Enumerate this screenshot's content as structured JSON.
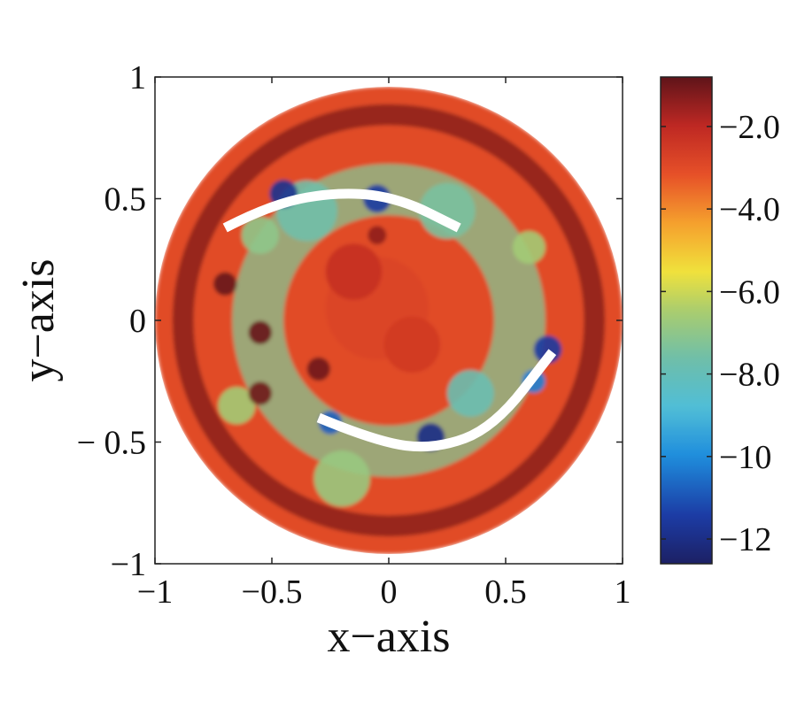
{
  "chart_data": {
    "type": "heatmap",
    "xlabel": "x−axis",
    "ylabel": "y−axis",
    "xlim": [
      -1,
      1
    ],
    "ylim": [
      -1,
      1
    ],
    "x_ticks": [
      -1,
      -0.5,
      0,
      0.5,
      1
    ],
    "x_tick_labels": [
      "−1",
      "−0.5",
      "0",
      "0.5",
      "1"
    ],
    "y_ticks": [
      -1,
      -0.5,
      0,
      0.5,
      1
    ],
    "y_tick_labels": [
      "−1",
      "− 0.5",
      "0",
      "0.5",
      "1"
    ],
    "domain": "unit disk",
    "colormap": "jet",
    "colorbar": {
      "range": [
        -12.6,
        -0.8
      ],
      "ticks": [
        -2,
        -4,
        -6,
        -8,
        -10,
        -12
      ],
      "tick_labels": [
        "−2.0",
        "−4.0",
        "−6.0",
        "−8.0",
        "−10",
        "−12"
      ]
    },
    "background_level": -3.0,
    "features": [
      {
        "type": "ring",
        "radius": 0.88,
        "width": 0.09,
        "value": -1.2
      },
      {
        "type": "ring",
        "radius": 0.56,
        "width": 0.22,
        "value": -7.2
      },
      {
        "type": "blob",
        "x": -0.05,
        "y": 0.05,
        "r": 0.22,
        "value": -2.8
      },
      {
        "type": "blob",
        "x": -0.15,
        "y": 0.2,
        "r": 0.12,
        "value": -2.2
      },
      {
        "type": "blob",
        "x": 0.1,
        "y": -0.1,
        "r": 0.12,
        "value": -2.5
      },
      {
        "type": "blob",
        "x": -0.35,
        "y": 0.45,
        "r": 0.13,
        "value": -7.6
      },
      {
        "type": "blob",
        "x": 0.25,
        "y": 0.45,
        "r": 0.12,
        "value": -7.4
      },
      {
        "type": "blob",
        "x": 0.35,
        "y": -0.3,
        "r": 0.1,
        "value": -7.8
      },
      {
        "type": "blob",
        "x": -0.2,
        "y": -0.65,
        "r": 0.12,
        "value": -6.8
      },
      {
        "type": "blob",
        "x": -0.55,
        "y": 0.35,
        "r": 0.08,
        "value": -7.0
      },
      {
        "type": "blob",
        "x": -0.65,
        "y": -0.35,
        "r": 0.08,
        "value": -6.6
      },
      {
        "type": "blob",
        "x": 0.6,
        "y": 0.3,
        "r": 0.07,
        "value": -6.6
      },
      {
        "type": "blob",
        "x": -0.55,
        "y": -0.05,
        "r": 0.05,
        "value": -0.9
      },
      {
        "type": "blob",
        "x": -0.7,
        "y": 0.15,
        "r": 0.05,
        "value": -0.9
      },
      {
        "type": "blob",
        "x": -0.55,
        "y": -0.3,
        "r": 0.05,
        "value": -1.0
      },
      {
        "type": "blob",
        "x": -0.3,
        "y": -0.2,
        "r": 0.05,
        "value": -1.0
      },
      {
        "type": "blob",
        "x": -0.05,
        "y": 0.35,
        "r": 0.04,
        "value": -1.4
      },
      {
        "type": "blob",
        "x": -0.45,
        "y": 0.52,
        "r": 0.06,
        "value": -11.8
      },
      {
        "type": "blob",
        "x": -0.05,
        "y": 0.5,
        "r": 0.06,
        "value": -11.5
      },
      {
        "type": "blob",
        "x": 0.18,
        "y": -0.48,
        "r": 0.06,
        "value": -12.0
      },
      {
        "type": "blob",
        "x": -0.25,
        "y": -0.42,
        "r": 0.05,
        "value": -10.8
      },
      {
        "type": "blob",
        "x": 0.68,
        "y": -0.12,
        "r": 0.06,
        "value": -11.5
      },
      {
        "type": "blob",
        "x": 0.62,
        "y": -0.25,
        "r": 0.05,
        "value": -10.2
      }
    ],
    "arcs": [
      {
        "name": "",
        "color": "#ffffff",
        "points": [
          [
            -0.7,
            0.38
          ],
          [
            -0.5,
            0.48
          ],
          [
            -0.2,
            0.53
          ],
          [
            0.05,
            0.5
          ],
          [
            0.3,
            0.38
          ]
        ]
      },
      {
        "name": "",
        "color": "#ffffff",
        "points": [
          [
            -0.3,
            -0.4
          ],
          [
            -0.05,
            -0.5
          ],
          [
            0.2,
            -0.53
          ],
          [
            0.45,
            -0.44
          ],
          [
            0.7,
            -0.13
          ]
        ]
      }
    ]
  }
}
